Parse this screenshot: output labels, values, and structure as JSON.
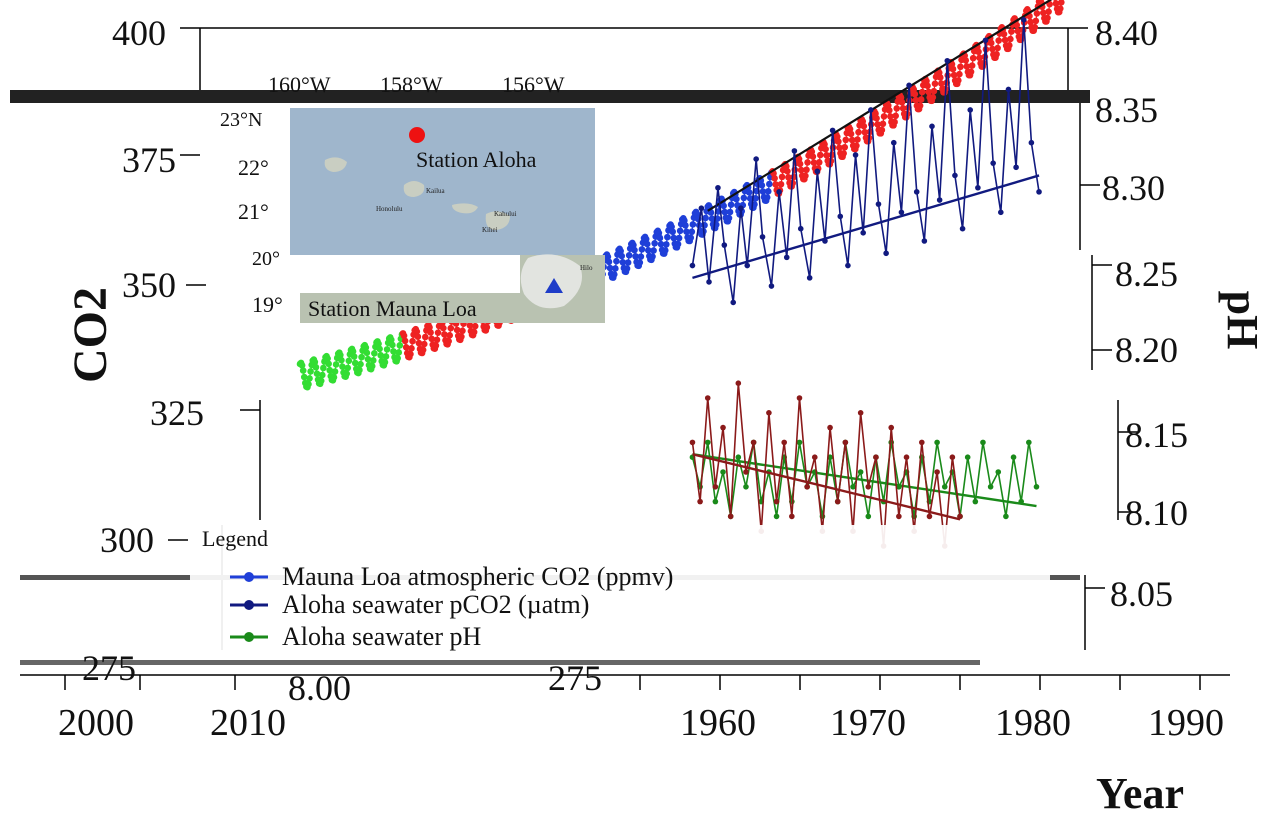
{
  "chart_data": {
    "type": "line",
    "title": "",
    "xlabel": "Year",
    "ylabel_left": "CO2",
    "ylabel_right": "pH",
    "left_ticks": [
      "400",
      "375",
      "350",
      "325",
      "300",
      "275"
    ],
    "left_ticks_lower": [
      "275",
      "8.00"
    ],
    "right_ticks": [
      "8.40",
      "8.35",
      "8.30",
      "8.25",
      "8.20",
      "8.15",
      "8.10",
      "8.05"
    ],
    "x_ticks_right": [
      "1960",
      "1970",
      "1980",
      "1990"
    ],
    "x_ticks_left": [
      "2000",
      "2010"
    ],
    "ylim_left": [
      275,
      400
    ],
    "ylim_right": [
      8.0,
      8.4
    ],
    "xlim": [
      1958,
      2020
    ],
    "grid": false,
    "legend_placement": "bottom-left",
    "legend_title": "Legend",
    "legend": [
      {
        "label": "Mauna Loa atmospheric CO2 (ppmv)",
        "color": "#1f3fd8"
      },
      {
        "label": "Aloha seawater pCO2 (µatm)",
        "color": "#111a80"
      },
      {
        "label": "Aloha seawater pH",
        "color": "#1a8a1a"
      }
    ],
    "series": [
      {
        "name": "Mauna Loa atmospheric CO2 (ppmv)",
        "axis": "left",
        "colors": [
          "#33dd33",
          "#ee2222",
          "#1f3fd8",
          "#ee2222"
        ],
        "color_breaks": [
          1966,
          1975,
          1995
        ],
        "x_start": 1958,
        "x_end": 2018,
        "trend": {
          "a": 315,
          "b": 0.8,
          "c": 0.0125
        },
        "seasonal_amplitude": 3.2
      },
      {
        "name": "Aloha seawater pCO2 (µatm)",
        "axis": "left",
        "color": "#111a80",
        "x": [
          1988.8,
          1989.5,
          1990.1,
          1990.8,
          1991.3,
          1992.0,
          1992.6,
          1993.1,
          1993.8,
          1994.3,
          1995.0,
          1995.6,
          1996.2,
          1996.8,
          1997.3,
          1998.0,
          1998.6,
          1999.2,
          1999.8,
          2000.4,
          2001.0,
          2001.6,
          2002.2,
          2002.8,
          2003.4,
          2004.0,
          2004.6,
          2005.2,
          2005.8,
          2006.4,
          2007.0,
          2007.6,
          2008.2,
          2008.8,
          2009.4,
          2010.0,
          2010.6,
          2011.2,
          2011.8,
          2012.4,
          2013.0,
          2013.6,
          2014.2,
          2014.8,
          2015.4,
          2016.0
        ],
        "values": [
          342,
          356,
          338,
          361,
          347,
          333,
          356,
          342,
          368,
          349,
          337,
          360,
          344,
          370,
          351,
          339,
          365,
          348,
          375,
          354,
          342,
          369,
          350,
          380,
          357,
          345,
          372,
          355,
          386,
          360,
          348,
          376,
          358,
          392,
          364,
          351,
          380,
          361,
          397,
          367,
          355,
          385,
          366,
          402,
          372,
          360
        ],
        "trend": [
          [
            1988.8,
            339
          ],
          [
            2016.0,
            364
          ]
        ]
      },
      {
        "name": "Aloha seawater pH",
        "axis": "right",
        "color": "#1a8a1a",
        "x": [
          1988.8,
          1989.4,
          1990.0,
          1990.6,
          1991.2,
          1991.8,
          1992.4,
          1993.0,
          1993.6,
          1994.2,
          1994.8,
          1995.4,
          1996.0,
          1996.6,
          1997.2,
          1997.8,
          1998.4,
          1999.0,
          1999.6,
          2000.2,
          2000.8,
          2001.4,
          2002.0,
          2002.6,
          2003.2,
          2003.8,
          2004.4,
          2005.0,
          2005.6,
          2006.2,
          2006.8,
          2007.4,
          2008.0,
          2008.6,
          2009.2,
          2009.8,
          2010.4,
          2011.0,
          2011.6,
          2012.2,
          2012.8,
          2013.4,
          2014.0,
          2014.6,
          2015.2,
          2015.8
        ],
        "values": [
          8.11,
          8.09,
          8.12,
          8.08,
          8.1,
          8.07,
          8.11,
          8.09,
          8.12,
          8.08,
          8.1,
          8.07,
          8.11,
          8.08,
          8.12,
          8.09,
          8.1,
          8.07,
          8.11,
          8.08,
          8.12,
          8.09,
          8.1,
          8.07,
          8.11,
          8.08,
          8.12,
          8.09,
          8.1,
          8.07,
          8.11,
          8.08,
          8.12,
          8.09,
          8.1,
          8.07,
          8.11,
          8.08,
          8.12,
          8.09,
          8.1,
          8.07,
          8.11,
          8.08,
          8.12,
          8.09
        ],
        "trend": [
          [
            1988.8,
            8.112
          ],
          [
            2015.8,
            8.077
          ]
        ]
      },
      {
        "name": "",
        "axis": "right",
        "color": "#8b1a1a",
        "x": [
          1988.8,
          1989.4,
          1990.0,
          1990.6,
          1991.2,
          1991.8,
          1992.4,
          1993.0,
          1993.6,
          1994.2,
          1994.8,
          1995.4,
          1996.0,
          1996.6,
          1997.2,
          1997.8,
          1998.4,
          1999.0,
          1999.6,
          2000.2,
          2000.8,
          2001.4,
          2002.0,
          2002.6,
          2003.2,
          2003.8,
          2004.4,
          2005.0,
          2005.6,
          2006.2,
          2006.8,
          2007.4,
          2008.0,
          2008.6,
          2009.2,
          2009.8
        ],
        "values": [
          8.12,
          8.08,
          8.15,
          8.09,
          8.13,
          8.07,
          8.16,
          8.1,
          8.12,
          8.06,
          8.14,
          8.08,
          8.12,
          8.07,
          8.15,
          8.09,
          8.11,
          8.06,
          8.13,
          8.08,
          8.12,
          8.06,
          8.14,
          8.09,
          8.11,
          8.05,
          8.13,
          8.07,
          8.11,
          8.06,
          8.12,
          8.07,
          8.1,
          8.05,
          8.11,
          8.07
        ],
        "trend": [
          [
            1988.8,
            8.112
          ],
          [
            2009.8,
            8.068
          ]
        ]
      }
    ]
  },
  "inset_map": {
    "lon_labels": [
      "160°W",
      "158°W",
      "156°W"
    ],
    "lat_labels": [
      "23°N",
      "22°",
      "21°",
      "20°",
      "19°"
    ],
    "station_aloha": "Station Aloha",
    "station_mauna_loa": "Station Mauna Loa",
    "place_labels": [
      "Kailua",
      "Honolulu",
      "Kahului",
      "Kihei",
      "Hilo"
    ],
    "ocean_color": "#9fb6cc",
    "land_color": "#b9c2b1",
    "aloha_marker_color": "#ee1111",
    "mauna_loa_marker_color": "#1e3cc8"
  }
}
